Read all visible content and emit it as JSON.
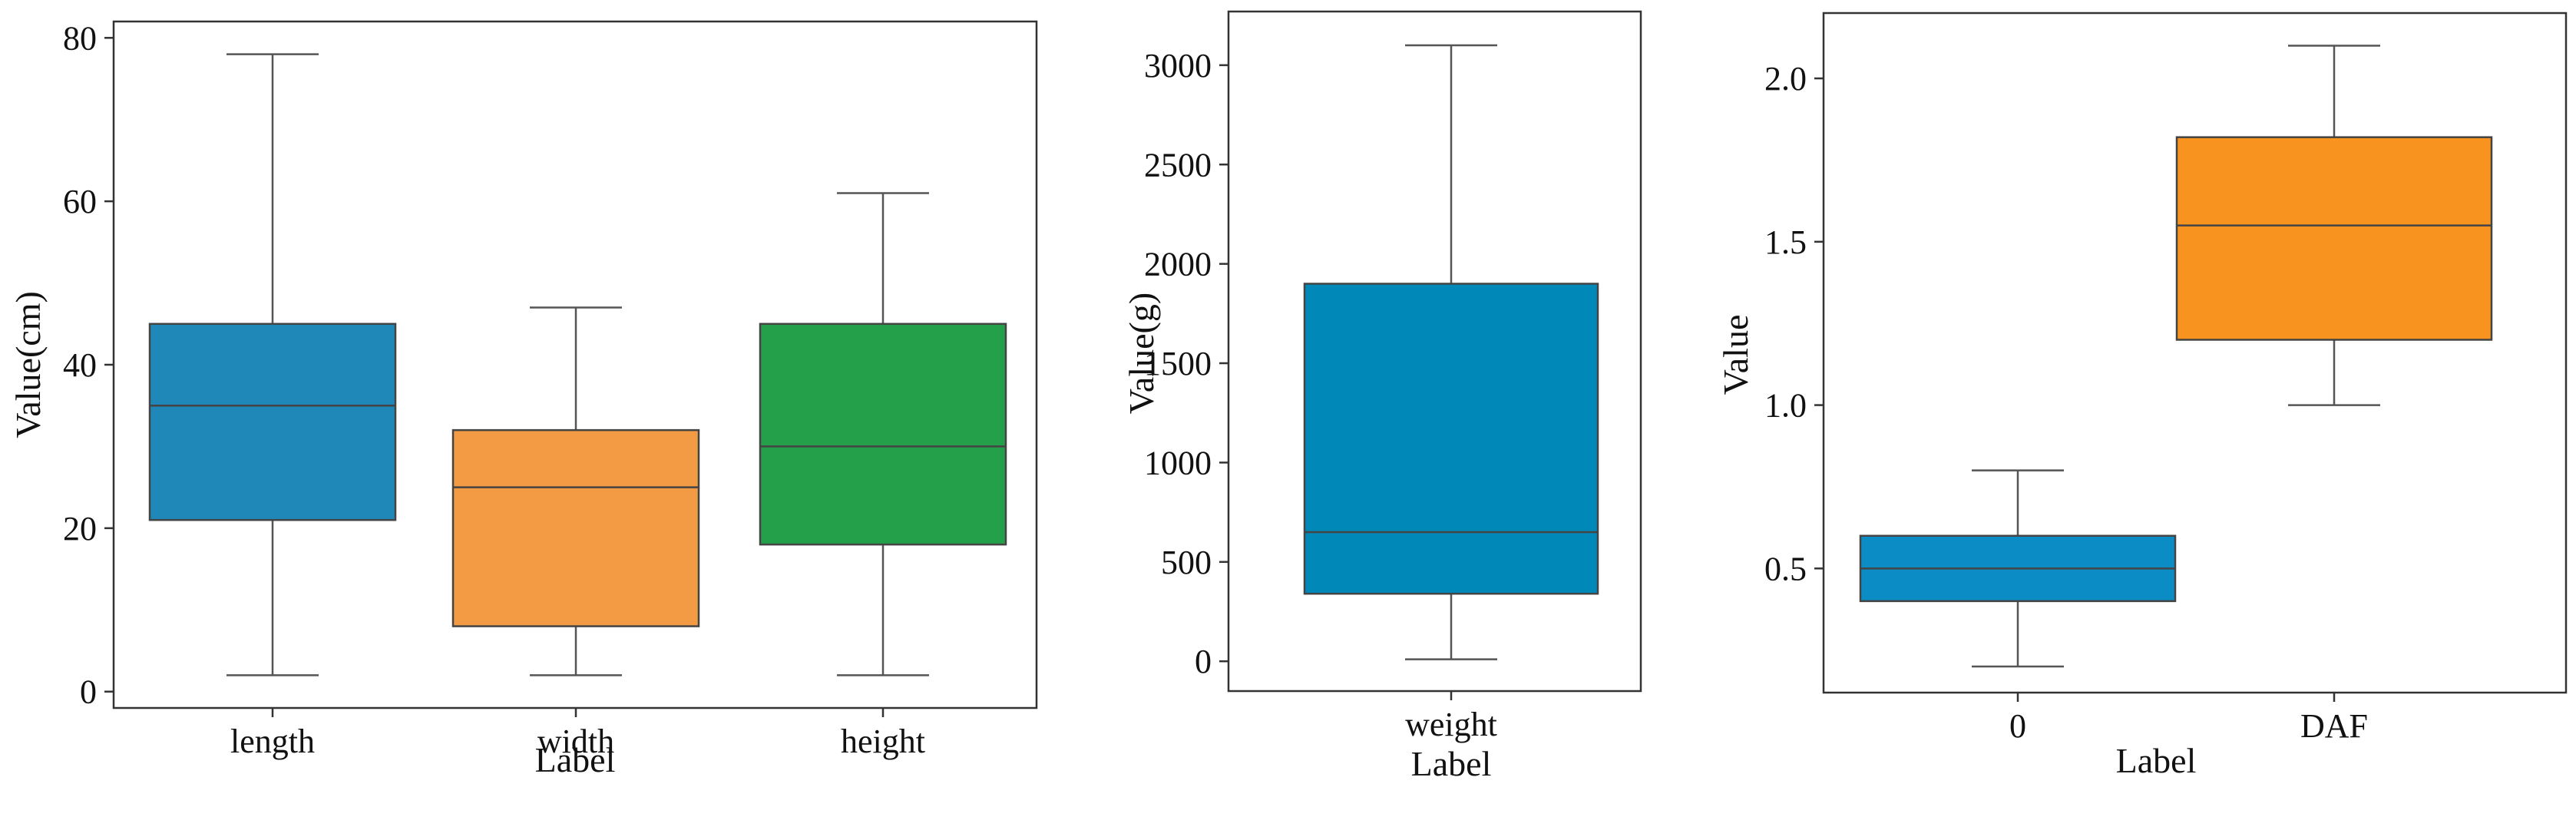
{
  "chart_data": [
    {
      "type": "box",
      "xlabel": "Label",
      "ylabel": "Value(cm)",
      "ylim": [
        -2,
        82
      ],
      "yticks": [
        0,
        20,
        40,
        60,
        80
      ],
      "categories": [
        "length",
        "width",
        "height"
      ],
      "boxes": [
        {
          "name": "length",
          "min": 2,
          "q1": 21,
          "median": 35,
          "q3": 45,
          "max": 78,
          "color": "#1f88b8"
        },
        {
          "name": "width",
          "min": 2,
          "q1": 8,
          "median": 25,
          "q3": 32,
          "max": 47,
          "color": "#f39a45"
        },
        {
          "name": "height",
          "min": 2,
          "q1": 18,
          "median": 30,
          "q3": 45,
          "max": 61,
          "color": "#24a04a"
        }
      ],
      "grid": false
    },
    {
      "type": "box",
      "xlabel": "Label",
      "ylabel": "Value(g)",
      "ylim": [
        -150,
        3270
      ],
      "yticks": [
        0,
        500,
        1000,
        1500,
        2000,
        2500,
        3000
      ],
      "categories": [
        "weight"
      ],
      "boxes": [
        {
          "name": "weight",
          "min": 10,
          "q1": 340,
          "median": 650,
          "q3": 1900,
          "max": 3100,
          "color": "#0088b9"
        }
      ],
      "grid": false
    },
    {
      "type": "box",
      "xlabel": "Label",
      "ylabel": "Value",
      "ylim": [
        0.12,
        2.2
      ],
      "yticks": [
        0.5,
        1.0,
        1.5,
        2.0
      ],
      "ytick_labels": [
        "0.5",
        "1.0",
        "1.5",
        "2.0"
      ],
      "categories": [
        "0",
        "DAF"
      ],
      "boxes": [
        {
          "name": "0",
          "min": 0.2,
          "q1": 0.4,
          "median": 0.5,
          "q3": 0.6,
          "max": 0.8,
          "color": "#0b8cc4"
        },
        {
          "name": "DAF",
          "min": 1.0,
          "q1": 1.2,
          "median": 1.55,
          "q3": 1.82,
          "max": 2.1,
          "color": "#f7931e"
        }
      ],
      "grid": false
    }
  ]
}
